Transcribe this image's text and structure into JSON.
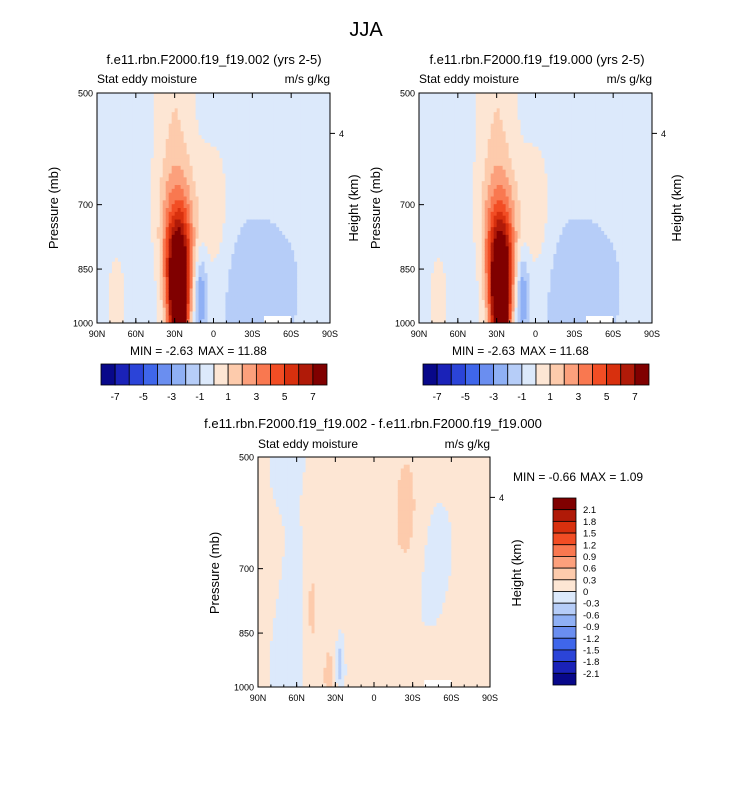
{
  "page": {
    "title": "JJA"
  },
  "chart_data": [
    {
      "type": "heatmap",
      "title": "f.e11.rbn.F2000.f19_f19.002 (yrs 2-5)",
      "left_label": "Stat eddy moisture",
      "right_label": "m/s g/kg",
      "xlabel": "",
      "ylabel": "Pressure (mb)",
      "y2label": "Height (km)",
      "x_ticks": [
        "90N",
        "60N",
        "30N",
        "0",
        "30S",
        "60S",
        "90S"
      ],
      "y_ticks": [
        "500",
        "700",
        "850",
        "1000"
      ],
      "y2_ticks": [
        "4"
      ],
      "ylim": [
        1000,
        500
      ],
      "min_label": "MIN = -2.63",
      "max_label": "MAX = 11.88",
      "min": -2.63,
      "max": 11.88,
      "peak_lat": 27,
      "peak_p": 930
    },
    {
      "type": "heatmap",
      "title": "f.e11.rbn.F2000.f19_f19.000 (yrs 2-5)",
      "left_label": "Stat eddy moisture",
      "right_label": "m/s g/kg",
      "xlabel": "",
      "ylabel": "Pressure (mb)",
      "y2label": "Height (km)",
      "x_ticks": [
        "90N",
        "60N",
        "30N",
        "0",
        "30S",
        "60S",
        "90S"
      ],
      "y_ticks": [
        "500",
        "700",
        "850",
        "1000"
      ],
      "y2_ticks": [
        "4"
      ],
      "ylim": [
        1000,
        500
      ],
      "min_label": "MIN = -2.63",
      "max_label": "MAX = 11.68",
      "min": -2.63,
      "max": 11.68,
      "peak_lat": 27,
      "peak_p": 930
    },
    {
      "type": "heatmap",
      "title": "f.e11.rbn.F2000.f19_f19.002 - f.e11.rbn.F2000.f19_f19.000",
      "left_label": "Stat eddy moisture",
      "right_label": "m/s g/kg",
      "xlabel": "",
      "ylabel": "Pressure (mb)",
      "y2label": "Height (km)",
      "x_ticks": [
        "90N",
        "60N",
        "30N",
        "0",
        "30S",
        "60S",
        "90S"
      ],
      "y_ticks": [
        "500",
        "700",
        "850",
        "1000"
      ],
      "y2_ticks": [
        "4"
      ],
      "ylim": [
        1000,
        500
      ],
      "min_label": "MIN =  -0.66",
      "max_label": "MAX =   1.09",
      "min": -0.66,
      "max": 1.09
    }
  ],
  "colorbars": {
    "main": {
      "labels": [
        "-7",
        "-5",
        "-3",
        "-1",
        "1",
        "3",
        "5",
        "7"
      ],
      "colors": [
        "#08088a",
        "#1a22b8",
        "#2b44d8",
        "#3f66ea",
        "#6a8ef0",
        "#8fb0f5",
        "#b6cdf8",
        "#dce9fb",
        "#fde6d4",
        "#fdcbac",
        "#fca07c",
        "#f97850",
        "#f24d24",
        "#d8300e",
        "#b01a08",
        "#800000"
      ]
    },
    "diff": {
      "labels": [
        "2.1",
        "1.8",
        "1.5",
        "1.2",
        "0.9",
        "0.6",
        "0.3",
        "0",
        "-0.3",
        "-0.6",
        "-0.9",
        "-1.2",
        "-1.5",
        "-1.8",
        "-2.1"
      ],
      "colors": [
        "#800000",
        "#b01a08",
        "#d8300e",
        "#f24d24",
        "#f97850",
        "#fca07c",
        "#fdcbac",
        "#fde6d4",
        "#dce9fb",
        "#b6cdf8",
        "#8fb0f5",
        "#6a8ef0",
        "#3f66ea",
        "#2b44d8",
        "#1a22b8",
        "#08088a"
      ]
    }
  }
}
